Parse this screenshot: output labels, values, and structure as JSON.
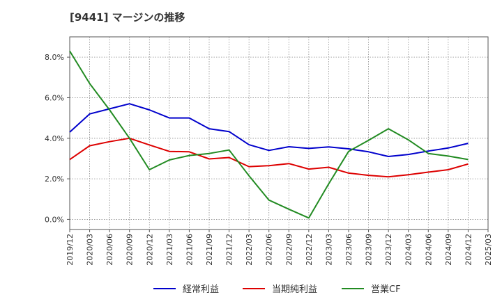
{
  "title": "[9441]  マージンの推移",
  "chart_data": {
    "type": "line",
    "x": [
      "2019/12",
      "2020/03",
      "2020/06",
      "2020/09",
      "2020/12",
      "2021/03",
      "2021/06",
      "2021/09",
      "2021/12",
      "2022/03",
      "2022/06",
      "2022/09",
      "2022/12",
      "2023/03",
      "2023/06",
      "2023/09",
      "2023/12",
      "2024/03",
      "2024/06",
      "2024/09",
      "2024/12",
      "2025/03"
    ],
    "ylim": [
      -0.5,
      9.0
    ],
    "yticks": [
      0,
      2,
      4,
      6,
      8
    ],
    "ytick_labels": [
      "0.0%",
      "2.0%",
      "4.0%",
      "6.0%",
      "8.0%"
    ],
    "grid": true,
    "legend_position": "bottom",
    "series": [
      {
        "name": "経常利益",
        "color": "#0000cc",
        "values": [
          4.3,
          5.2,
          5.45,
          5.7,
          5.4,
          5.0,
          5.0,
          4.47,
          4.33,
          3.68,
          3.4,
          3.58,
          3.5,
          3.57,
          3.48,
          3.33,
          3.1,
          3.2,
          3.37,
          3.52,
          3.75,
          null
        ]
      },
      {
        "name": "当期純利益",
        "color": "#dd0000",
        "values": [
          2.95,
          3.63,
          3.83,
          4.0,
          3.67,
          3.35,
          3.33,
          2.98,
          3.05,
          2.6,
          2.65,
          2.75,
          2.48,
          2.57,
          2.28,
          2.17,
          2.1,
          2.2,
          2.33,
          2.45,
          2.73,
          null
        ]
      },
      {
        "name": "営業CF",
        "color": "#228b22",
        "values": [
          8.3,
          6.7,
          5.4,
          4.0,
          2.45,
          2.93,
          3.15,
          3.25,
          3.42,
          2.15,
          0.95,
          0.5,
          0.07,
          1.75,
          3.35,
          3.9,
          4.47,
          3.92,
          3.25,
          3.12,
          2.95,
          null
        ]
      }
    ]
  }
}
